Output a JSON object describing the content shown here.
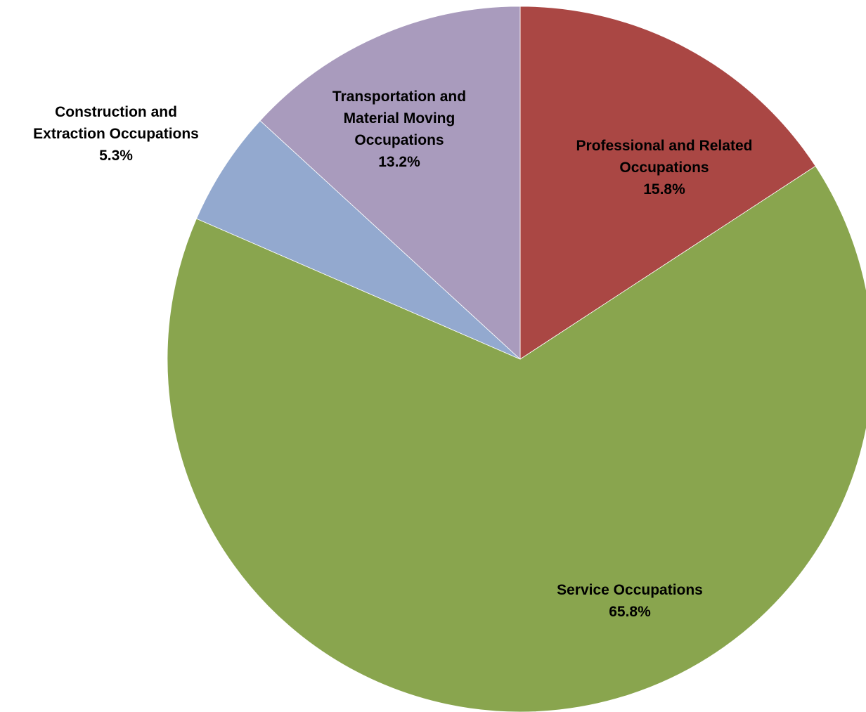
{
  "chart_data": {
    "type": "pie",
    "title": "",
    "start_angle_deg": 0,
    "direction": "clockwise",
    "slices": [
      {
        "label_lines": [
          "Professional and Related",
          "Occupations"
        ],
        "value": 15.8,
        "value_label": "15.8%",
        "color": "#AA4744"
      },
      {
        "label_lines": [
          "Service Occupations"
        ],
        "value": 65.8,
        "value_label": "65.8%",
        "color": "#89A54E"
      },
      {
        "label_lines": [
          "Construction and",
          "Extraction Occupations"
        ],
        "value": 5.3,
        "value_label": "5.3%",
        "color": "#93A9CF"
      },
      {
        "label_lines": [
          "Transportation and",
          "Material Moving",
          "Occupations"
        ],
        "value": 13.2,
        "value_label": "13.2%",
        "color": "#A99BBD"
      }
    ],
    "legend": "none",
    "data_labels": "category name and percentage"
  }
}
